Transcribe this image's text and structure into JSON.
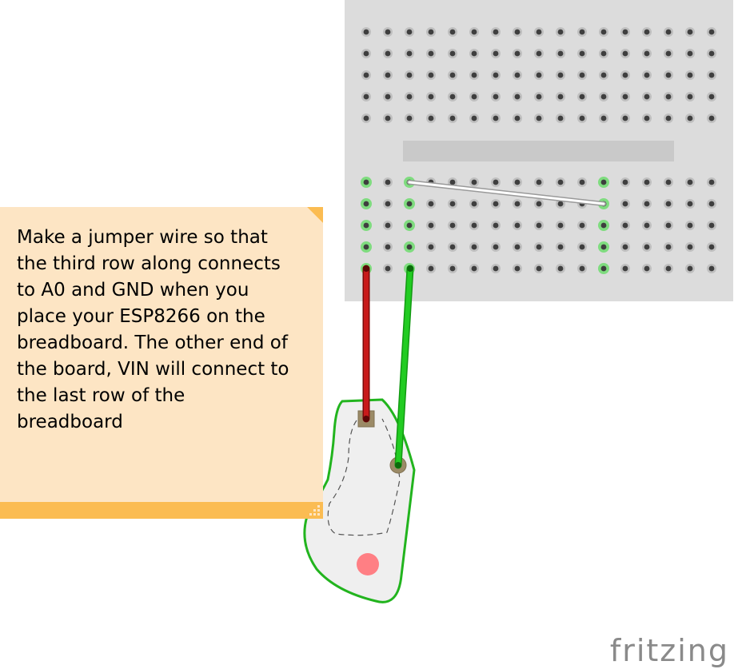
{
  "note": {
    "text": "Make a jumper wire so that\nthe third row along connects\nto A0 and GND when you\nplace your ESP8266 on the\nbreadboard. The other end of\nthe board, VIN will connect to\nthe last row of the\nbreadboard"
  },
  "brand": {
    "logo_text": "fritzing"
  },
  "colors": {
    "breadboard": "#dcdcdc",
    "breadboard_channel": "#c9c9c9",
    "hole": "#3f3f3f",
    "hole_ring": "#bfbfbf",
    "connected_highlight": "#7fdc7f",
    "note_body": "#fde5c4",
    "note_accent": "#fbbc52",
    "red_wire": "#b81212",
    "green_wire": "#1ec41e",
    "grey_wire": "#ffffff",
    "part_outline": "#22b41e",
    "part_body": "#efefef",
    "part_dot": "#ff7f84"
  },
  "breadboard": {
    "columns": 17,
    "top_rows": 5,
    "bottom_rows": 5
  }
}
